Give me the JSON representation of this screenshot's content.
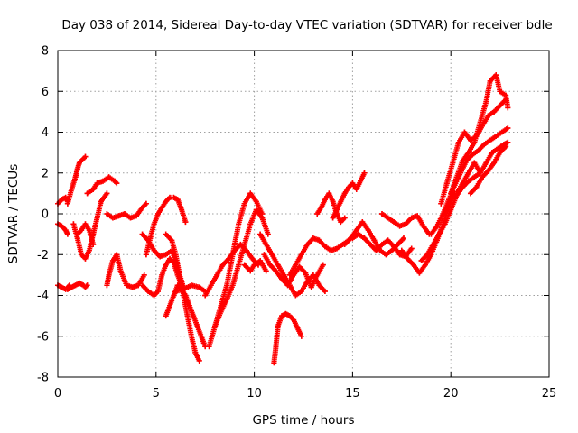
{
  "chart_data": {
    "type": "scatter",
    "title": "Day 038 of 2014, Sidereal Day-to-day VTEC variation (SDTVAR) for receiver bdle",
    "xlabel": "GPS time / hours",
    "ylabel": "SDTVAR / TECUs",
    "xlim": [
      0,
      25
    ],
    "ylim": [
      -8,
      8
    ],
    "x_ticks": [
      "0",
      "5",
      "10",
      "15",
      "20",
      "25"
    ],
    "y_ticks": [
      "-8",
      "-6",
      "-4",
      "-2",
      "0",
      "2",
      "4",
      "6",
      "8"
    ],
    "grid": true,
    "marker": "plus",
    "color": "#ff0000",
    "series": [
      {
        "x": [
          0.0,
          0.2,
          0.4,
          0.5
        ],
        "y": [
          -0.5,
          -0.6,
          -0.8,
          -1.0
        ]
      },
      {
        "x": [
          0.0,
          0.2,
          0.4,
          0.5,
          0.6
        ],
        "y": [
          -3.5,
          -3.6,
          -3.7,
          -3.6,
          -3.5
        ]
      },
      {
        "x": [
          0.0,
          0.2,
          0.4,
          0.5
        ],
        "y": [
          0.5,
          0.7,
          0.8,
          0.6
        ]
      },
      {
        "x": [
          0.5,
          0.7,
          0.9,
          1.1,
          1.3,
          1.4,
          1.5
        ],
        "y": [
          -3.7,
          -3.6,
          -3.5,
          -3.4,
          -3.5,
          -3.6,
          -3.5
        ]
      },
      {
        "x": [
          0.5,
          0.7,
          0.9,
          1.0,
          1.1,
          1.2,
          1.4
        ],
        "y": [
          0.5,
          1.2,
          1.8,
          2.2,
          2.5,
          2.6,
          2.8
        ]
      },
      {
        "x": [
          0.8,
          1.0,
          1.2,
          1.4,
          1.6,
          1.8,
          2.0,
          2.2,
          2.5
        ],
        "y": [
          -0.5,
          -1.2,
          -2.0,
          -2.2,
          -1.8,
          -1.0,
          -0.2,
          0.6,
          1.0
        ]
      },
      {
        "x": [
          1.0,
          1.2,
          1.4,
          1.6,
          1.8
        ],
        "y": [
          -1.0,
          -0.8,
          -0.5,
          -0.8,
          -1.5
        ]
      },
      {
        "x": [
          1.5,
          1.8,
          2.0,
          2.3,
          2.6,
          2.9,
          3.0
        ],
        "y": [
          1.0,
          1.2,
          1.5,
          1.6,
          1.8,
          1.6,
          1.5
        ]
      },
      {
        "x": [
          2.5,
          2.6,
          2.8,
          3.0,
          3.2,
          3.5,
          3.8,
          4.1,
          4.4
        ],
        "y": [
          -3.5,
          -3.0,
          -2.3,
          -2.0,
          -2.8,
          -3.5,
          -3.6,
          -3.5,
          -3.0
        ]
      },
      {
        "x": [
          2.5,
          2.8,
          3.1,
          3.4,
          3.7,
          4.0,
          4.3,
          4.5
        ],
        "y": [
          0.0,
          -0.2,
          -0.1,
          0.0,
          -0.2,
          -0.1,
          0.3,
          0.5
        ]
      },
      {
        "x": [
          4.3,
          4.6,
          4.9,
          5.2,
          5.5,
          5.8,
          6.0,
          6.2,
          6.4
        ],
        "y": [
          -1.0,
          -1.3,
          -1.8,
          -2.1,
          -2.0,
          -1.8,
          -2.3,
          -3.0,
          -3.6
        ]
      },
      {
        "x": [
          4.3,
          4.6,
          4.9,
          5.1,
          5.3,
          5.5,
          5.7,
          5.9,
          6.1,
          6.3
        ],
        "y": [
          -3.5,
          -3.8,
          -4.0,
          -3.8,
          -3.0,
          -2.5,
          -2.2,
          -2.4,
          -3.0,
          -3.5
        ]
      },
      {
        "x": [
          4.5,
          4.7,
          4.9,
          5.1,
          5.3,
          5.5,
          5.7,
          5.9,
          6.1,
          6.3,
          6.5
        ],
        "y": [
          -2.0,
          -1.2,
          -0.5,
          0.0,
          0.3,
          0.6,
          0.8,
          0.8,
          0.7,
          0.2,
          -0.4
        ]
      },
      {
        "x": [
          5.5,
          5.8,
          6.0,
          6.2,
          6.4,
          6.6,
          6.8,
          7.0,
          7.2
        ],
        "y": [
          -1.0,
          -1.3,
          -2.0,
          -3.0,
          -4.0,
          -5.0,
          -6.0,
          -6.8,
          -7.2
        ]
      },
      {
        "x": [
          5.5,
          5.7,
          5.9,
          6.1,
          6.3,
          6.5,
          6.7,
          6.9,
          7.1,
          7.3,
          7.5
        ],
        "y": [
          -5.0,
          -4.5,
          -4.0,
          -3.5,
          -3.7,
          -4.0,
          -4.5,
          -5.0,
          -5.5,
          -6.0,
          -6.5
        ]
      },
      {
        "x": [
          6.0,
          6.4,
          6.8,
          7.2,
          7.5
        ],
        "y": [
          -3.8,
          -3.7,
          -3.5,
          -3.6,
          -3.8
        ]
      },
      {
        "x": [
          7.5,
          7.8,
          8.1,
          8.4,
          8.7,
          9.0,
          9.3,
          9.6,
          9.9,
          10.2
        ],
        "y": [
          -4.0,
          -3.5,
          -3.0,
          -2.5,
          -2.2,
          -1.8,
          -1.5,
          -1.8,
          -2.2,
          -2.5
        ]
      },
      {
        "x": [
          7.7,
          8.0,
          8.3,
          8.6,
          8.9,
          9.2,
          9.5,
          9.8,
          10.1,
          10.4
        ],
        "y": [
          -6.5,
          -5.5,
          -4.5,
          -3.5,
          -2.0,
          -0.5,
          0.5,
          1.0,
          0.6,
          0.0
        ]
      },
      {
        "x": [
          8.0,
          8.3,
          8.6,
          8.9,
          9.2,
          9.5,
          9.8,
          10.1,
          10.4,
          10.7
        ],
        "y": [
          -5.5,
          -4.8,
          -4.2,
          -3.5,
          -2.5,
          -1.5,
          -0.5,
          0.2,
          -0.2,
          -1.0
        ]
      },
      {
        "x": [
          9.5,
          9.8,
          10.0,
          10.3,
          10.6
        ],
        "y": [
          -2.5,
          -2.8,
          -2.5,
          -2.3,
          -2.8
        ]
      },
      {
        "x": [
          10.3,
          10.6,
          10.9,
          11.2,
          11.5,
          11.8,
          12.1,
          12.4,
          12.7,
          13.0,
          13.3,
          13.6
        ],
        "y": [
          -1.0,
          -1.5,
          -2.0,
          -2.5,
          -3.0,
          -3.5,
          -4.0,
          -3.8,
          -3.3,
          -3.0,
          -3.5,
          -3.8
        ]
      },
      {
        "x": [
          10.5,
          10.8,
          11.1,
          11.4,
          11.7,
          12.0,
          12.3,
          12.6,
          12.9,
          13.2,
          13.5
        ],
        "y": [
          -2.0,
          -2.5,
          -2.8,
          -3.2,
          -3.5,
          -3.0,
          -2.6,
          -2.9,
          -3.6,
          -3.0,
          -2.5
        ]
      },
      {
        "x": [
          11.0,
          11.1,
          11.2,
          11.4,
          11.6,
          11.8,
          12.0,
          12.2,
          12.4
        ],
        "y": [
          -7.3,
          -6.5,
          -5.5,
          -5.0,
          -4.9,
          -5.0,
          -5.2,
          -5.6,
          -6.0
        ]
      },
      {
        "x": [
          11.8,
          12.1,
          12.4,
          12.7,
          13.0,
          13.3,
          13.6,
          13.9,
          14.2,
          14.5,
          14.8
        ],
        "y": [
          -3.0,
          -2.5,
          -2.0,
          -1.5,
          -1.2,
          -1.3,
          -1.6,
          -1.8,
          -1.7,
          -1.5,
          -1.3
        ]
      },
      {
        "x": [
          13.2,
          13.4,
          13.6,
          13.8,
          14.0,
          14.2,
          14.4,
          14.6
        ],
        "y": [
          0.0,
          0.3,
          0.7,
          1.0,
          0.6,
          0.0,
          -0.4,
          -0.2
        ]
      },
      {
        "x": [
          14.0,
          14.2,
          14.4,
          14.6,
          14.8,
          15.0,
          15.2,
          15.4,
          15.6
        ],
        "y": [
          -0.2,
          0.2,
          0.6,
          1.0,
          1.3,
          1.5,
          1.2,
          1.6,
          2.0
        ]
      },
      {
        "x": [
          14.6,
          14.9,
          15.2,
          15.5,
          15.8,
          16.1,
          16.4,
          16.7,
          17.0,
          17.3,
          17.6
        ],
        "y": [
          -1.5,
          -1.2,
          -0.8,
          -0.4,
          -0.8,
          -1.3,
          -1.8,
          -2.0,
          -1.8,
          -1.5,
          -1.2
        ]
      },
      {
        "x": [
          15.0,
          15.3,
          15.6,
          15.9,
          16.2,
          16.5,
          16.8,
          17.1,
          17.4,
          17.7,
          18.0
        ],
        "y": [
          -1.2,
          -1.0,
          -1.2,
          -1.5,
          -1.8,
          -1.5,
          -1.3,
          -1.6,
          -2.0,
          -2.1,
          -1.7
        ]
      },
      {
        "x": [
          16.5,
          16.8,
          17.1,
          17.4,
          17.7,
          18.0,
          18.3,
          18.6,
          18.9
        ],
        "y": [
          0.0,
          -0.2,
          -0.4,
          -0.6,
          -0.5,
          -0.2,
          -0.1,
          -0.6,
          -1.0
        ]
      },
      {
        "x": [
          17.5,
          17.8,
          18.1,
          18.4,
          18.7,
          19.0,
          19.3,
          19.6,
          19.9,
          20.2
        ],
        "y": [
          -1.8,
          -2.2,
          -2.5,
          -2.9,
          -2.5,
          -2.0,
          -1.3,
          -0.5,
          0.3,
          1.0
        ]
      },
      {
        "x": [
          18.5,
          18.8,
          19.1,
          19.4,
          19.7,
          20.0,
          20.3,
          20.6,
          20.9,
          21.2,
          21.5
        ],
        "y": [
          -2.3,
          -2.0,
          -1.5,
          -1.0,
          -0.5,
          0.2,
          0.9,
          1.3,
          1.6,
          1.8,
          2.0
        ]
      },
      {
        "x": [
          19.0,
          19.3,
          19.6,
          19.9,
          20.2,
          20.5,
          20.8,
          21.1,
          21.4,
          21.7,
          22.0,
          22.3,
          22.6,
          22.9
        ],
        "y": [
          -1.0,
          -0.6,
          0.0,
          0.7,
          1.4,
          2.0,
          2.6,
          2.9,
          3.1,
          3.4,
          3.6,
          3.8,
          4.0,
          4.2
        ]
      },
      {
        "x": [
          19.5,
          19.8,
          20.1,
          20.4,
          20.7,
          21.0,
          21.3,
          21.6,
          21.9,
          22.2,
          22.5,
          22.8
        ],
        "y": [
          0.5,
          1.5,
          2.5,
          3.5,
          4.0,
          3.6,
          3.8,
          4.3,
          4.8,
          5.0,
          5.3,
          5.6
        ]
      },
      {
        "x": [
          20.0,
          20.3,
          20.6,
          20.9,
          21.2,
          21.5,
          21.8,
          22.0,
          22.3,
          22.5,
          22.8,
          22.9
        ],
        "y": [
          1.0,
          1.8,
          2.6,
          3.0,
          3.5,
          4.5,
          5.5,
          6.5,
          6.8,
          6.0,
          5.8,
          5.2
        ]
      },
      {
        "x": [
          20.3,
          20.6,
          20.9,
          21.2,
          21.5,
          21.8,
          22.1,
          22.4,
          22.7,
          22.9
        ],
        "y": [
          1.0,
          1.5,
          2.0,
          2.5,
          2.0,
          2.5,
          3.0,
          3.2,
          3.4,
          3.5
        ]
      },
      {
        "x": [
          21.0,
          21.3,
          21.6,
          21.9,
          22.2,
          22.5,
          22.8
        ],
        "y": [
          1.0,
          1.3,
          1.8,
          2.1,
          2.5,
          3.0,
          3.3
        ]
      }
    ]
  }
}
